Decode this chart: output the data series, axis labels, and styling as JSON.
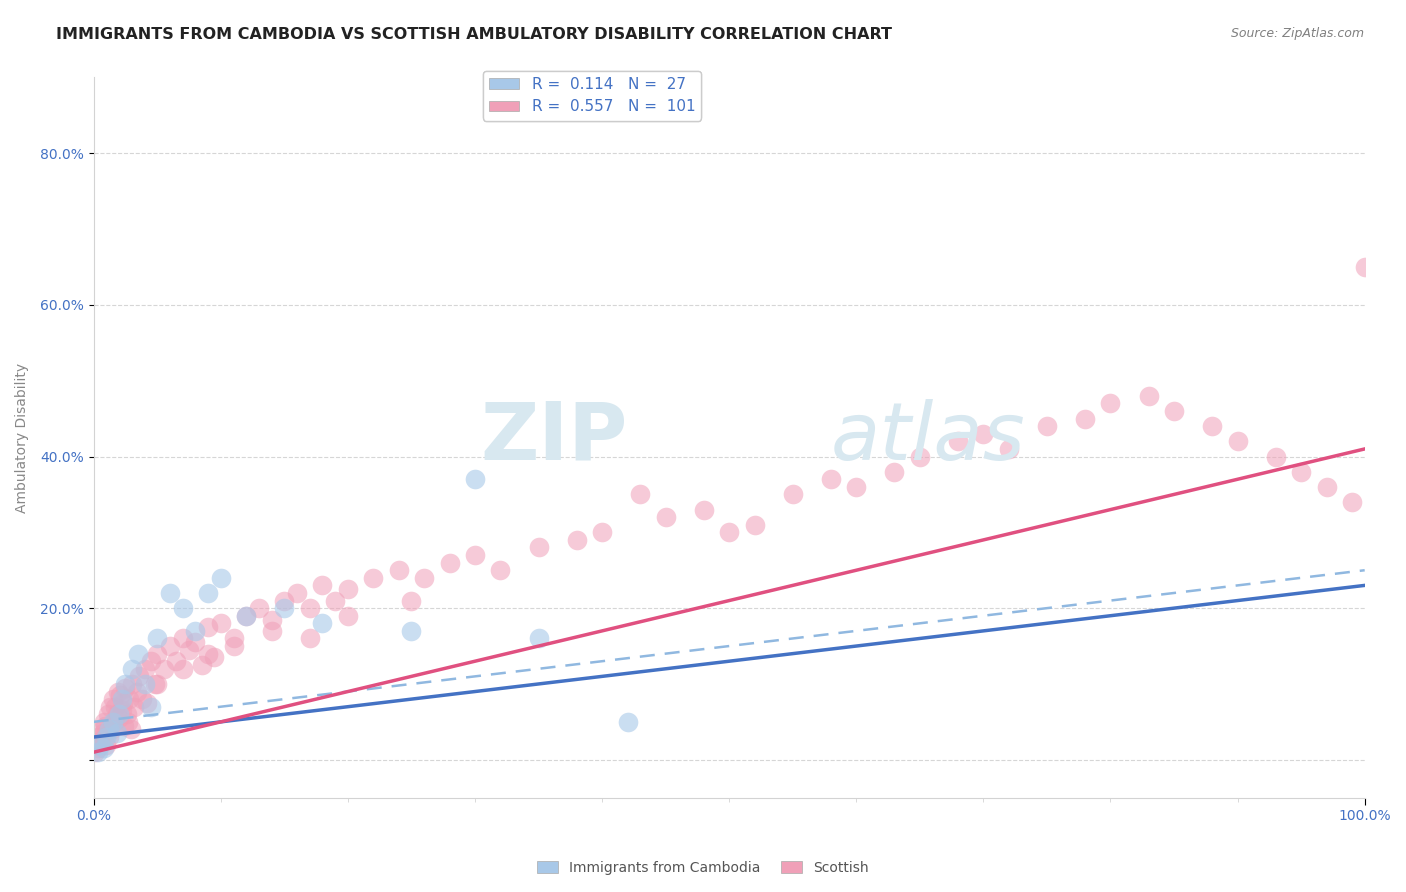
{
  "title": "IMMIGRANTS FROM CAMBODIA VS SCOTTISH AMBULATORY DISABILITY CORRELATION CHART",
  "source": "Source: ZipAtlas.com",
  "ylabel": "Ambulatory Disability",
  "xlim": [
    0.0,
    100.0
  ],
  "ylim": [
    -5.0,
    90.0
  ],
  "legend_R1": "0.114",
  "legend_N1": "27",
  "legend_R2": "0.557",
  "legend_N2": "101",
  "color_blue": "#A8C8E8",
  "color_pink": "#F0A0B8",
  "color_blue_line": "#4472C4",
  "color_pink_line": "#E05080",
  "color_blue_dash": "#90B8E0",
  "title_color": "#222222",
  "axis_color": "#4472C4",
  "ylabel_color": "#888888",
  "grid_color": "#CCCCCC",
  "watermark_color": "#D8E8F0",
  "blue_x": [
    0.3,
    0.5,
    0.8,
    1.0,
    1.2,
    1.5,
    1.8,
    2.0,
    2.2,
    2.5,
    3.0,
    3.5,
    4.0,
    4.5,
    5.0,
    6.0,
    7.0,
    8.0,
    9.0,
    10.0,
    12.0,
    15.0,
    18.0,
    25.0,
    30.0,
    35.0,
    42.0
  ],
  "blue_y": [
    1.0,
    2.0,
    1.5,
    3.0,
    4.0,
    5.0,
    3.5,
    6.0,
    8.0,
    10.0,
    12.0,
    14.0,
    10.0,
    7.0,
    16.0,
    22.0,
    20.0,
    17.0,
    22.0,
    24.0,
    19.0,
    20.0,
    18.0,
    17.0,
    37.0,
    16.0,
    5.0
  ],
  "pink_x": [
    0.1,
    0.2,
    0.3,
    0.4,
    0.5,
    0.6,
    0.7,
    0.8,
    0.9,
    1.0,
    1.1,
    1.2,
    1.3,
    1.4,
    1.5,
    1.6,
    1.7,
    1.8,
    1.9,
    2.0,
    2.1,
    2.2,
    2.3,
    2.4,
    2.5,
    2.6,
    2.7,
    2.8,
    2.9,
    3.0,
    3.2,
    3.4,
    3.6,
    3.8,
    4.0,
    4.2,
    4.5,
    4.8,
    5.0,
    5.5,
    6.0,
    6.5,
    7.0,
    7.5,
    8.0,
    8.5,
    9.0,
    9.5,
    10.0,
    11.0,
    12.0,
    13.0,
    14.0,
    15.0,
    16.0,
    17.0,
    18.0,
    19.0,
    20.0,
    22.0,
    24.0,
    26.0,
    28.0,
    30.0,
    32.0,
    35.0,
    38.0,
    40.0,
    43.0,
    45.0,
    48.0,
    50.0,
    52.0,
    55.0,
    58.0,
    60.0,
    63.0,
    65.0,
    68.0,
    70.0,
    72.0,
    75.0,
    78.0,
    80.0,
    83.0,
    85.0,
    88.0,
    90.0,
    93.0,
    95.0,
    97.0,
    99.0,
    100.0,
    5.0,
    7.0,
    9.0,
    11.0,
    14.0,
    17.0,
    20.0,
    25.0
  ],
  "pink_y": [
    1.0,
    2.0,
    1.5,
    3.0,
    2.5,
    4.0,
    3.5,
    5.0,
    4.5,
    2.0,
    6.0,
    3.0,
    7.0,
    4.0,
    8.0,
    5.0,
    7.0,
    6.0,
    9.0,
    5.5,
    8.5,
    6.5,
    7.5,
    4.5,
    9.5,
    6.0,
    5.0,
    8.0,
    4.0,
    10.0,
    7.0,
    9.0,
    11.0,
    8.0,
    12.0,
    7.5,
    13.0,
    10.0,
    14.0,
    12.0,
    15.0,
    13.0,
    16.0,
    14.5,
    15.5,
    12.5,
    17.5,
    13.5,
    18.0,
    16.0,
    19.0,
    20.0,
    18.5,
    21.0,
    22.0,
    20.0,
    23.0,
    21.0,
    22.5,
    24.0,
    25.0,
    24.0,
    26.0,
    27.0,
    25.0,
    28.0,
    29.0,
    30.0,
    35.0,
    32.0,
    33.0,
    30.0,
    31.0,
    35.0,
    37.0,
    36.0,
    38.0,
    40.0,
    42.0,
    43.0,
    41.0,
    44.0,
    45.0,
    47.0,
    48.0,
    46.0,
    44.0,
    42.0,
    40.0,
    38.0,
    36.0,
    34.0,
    65.0,
    10.0,
    12.0,
    14.0,
    15.0,
    17.0,
    16.0,
    19.0,
    21.0
  ]
}
